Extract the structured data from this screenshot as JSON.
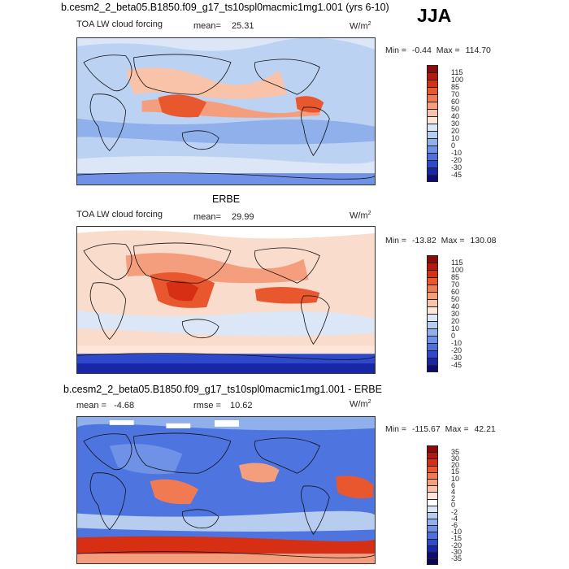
{
  "figure": {
    "title": "b.cesm2_2_beta05.B1850.f09_g17_ts10spl0macmic1mg1.001 (yrs 6-10)",
    "season": "JJA"
  },
  "panels": [
    {
      "id": "model",
      "section_title": "",
      "variable": "TOA LW cloud forcing",
      "mean_label": "mean=",
      "mean_value": "25.31",
      "units": "W/m",
      "units_sup": "2",
      "min_label": "Min =",
      "min_value": "-0.44",
      "max_label": "Max =",
      "max_value": "114.70",
      "levels": [
        "115",
        "100",
        "85",
        "70",
        "60",
        "50",
        "40",
        "30",
        "20",
        "10",
        "0",
        "-10",
        "-20",
        "-30",
        "-45"
      ],
      "colors": [
        "#8c0a0a",
        "#b31a0f",
        "#d62f14",
        "#e8572d",
        "#f07a52",
        "#f59e7e",
        "#f9c3a9",
        "#fde6d8",
        "#dbe7f7",
        "#b6cdf0",
        "#8fb0ea",
        "#6f92e6",
        "#4f6fde",
        "#2f49cc",
        "#1a26a8",
        "#0c0c73"
      ]
    },
    {
      "id": "obs",
      "section_title": "ERBE",
      "variable": "TOA LW cloud forcing",
      "mean_label": "mean=",
      "mean_value": "29.99",
      "units": "W/m",
      "units_sup": "2",
      "min_label": "Min =",
      "min_value": "-13.82",
      "max_label": "Max =",
      "max_value": "130.08",
      "levels": [
        "115",
        "100",
        "85",
        "70",
        "60",
        "50",
        "40",
        "30",
        "20",
        "10",
        "0",
        "-10",
        "-20",
        "-30",
        "-45"
      ],
      "colors": [
        "#8c0a0a",
        "#b31a0f",
        "#d62f14",
        "#e8572d",
        "#f07a52",
        "#f59e7e",
        "#f9c3a9",
        "#fde6d8",
        "#dbe7f7",
        "#b6cdf0",
        "#8fb0ea",
        "#6f92e6",
        "#4f6fde",
        "#2f49cc",
        "#1a26a8",
        "#0c0c73"
      ]
    },
    {
      "id": "diff",
      "section_title": "b.cesm2_2_beta05.B1850.f09_g17_ts10spl0macmic1mg1.001 - ERBE",
      "variable": "",
      "mean_label": "mean =",
      "mean_value": "-4.68",
      "rmse_label": "rmse =",
      "rmse_value": "10.62",
      "units": "W/m",
      "units_sup": "2",
      "min_label": "Min =",
      "min_value": "-115.67",
      "max_label": "Max =",
      "max_value": "42.21",
      "levels": [
        "35",
        "30",
        "20",
        "15",
        "10",
        "6",
        "4",
        "2",
        "0",
        "-2",
        "-4",
        "-6",
        "-10",
        "-15",
        "-20",
        "-30",
        "-35"
      ],
      "colors": [
        "#8c0a0a",
        "#b31a0f",
        "#d62f14",
        "#e8572d",
        "#f07a52",
        "#f59e7e",
        "#f9c3a9",
        "#fde6d8",
        "#ffffff",
        "#dbe7f7",
        "#b6cdf0",
        "#8fb0ea",
        "#6f92e6",
        "#4f6fde",
        "#2f49cc",
        "#1a26a8",
        "#0c0c73",
        "#070752"
      ]
    }
  ],
  "palette": {
    "ocean_base_model": "#bcd2f2",
    "ocean_base_obs": "#f9dccb",
    "ocean_base_diff": "#4e74e0",
    "coast": "#111111"
  }
}
